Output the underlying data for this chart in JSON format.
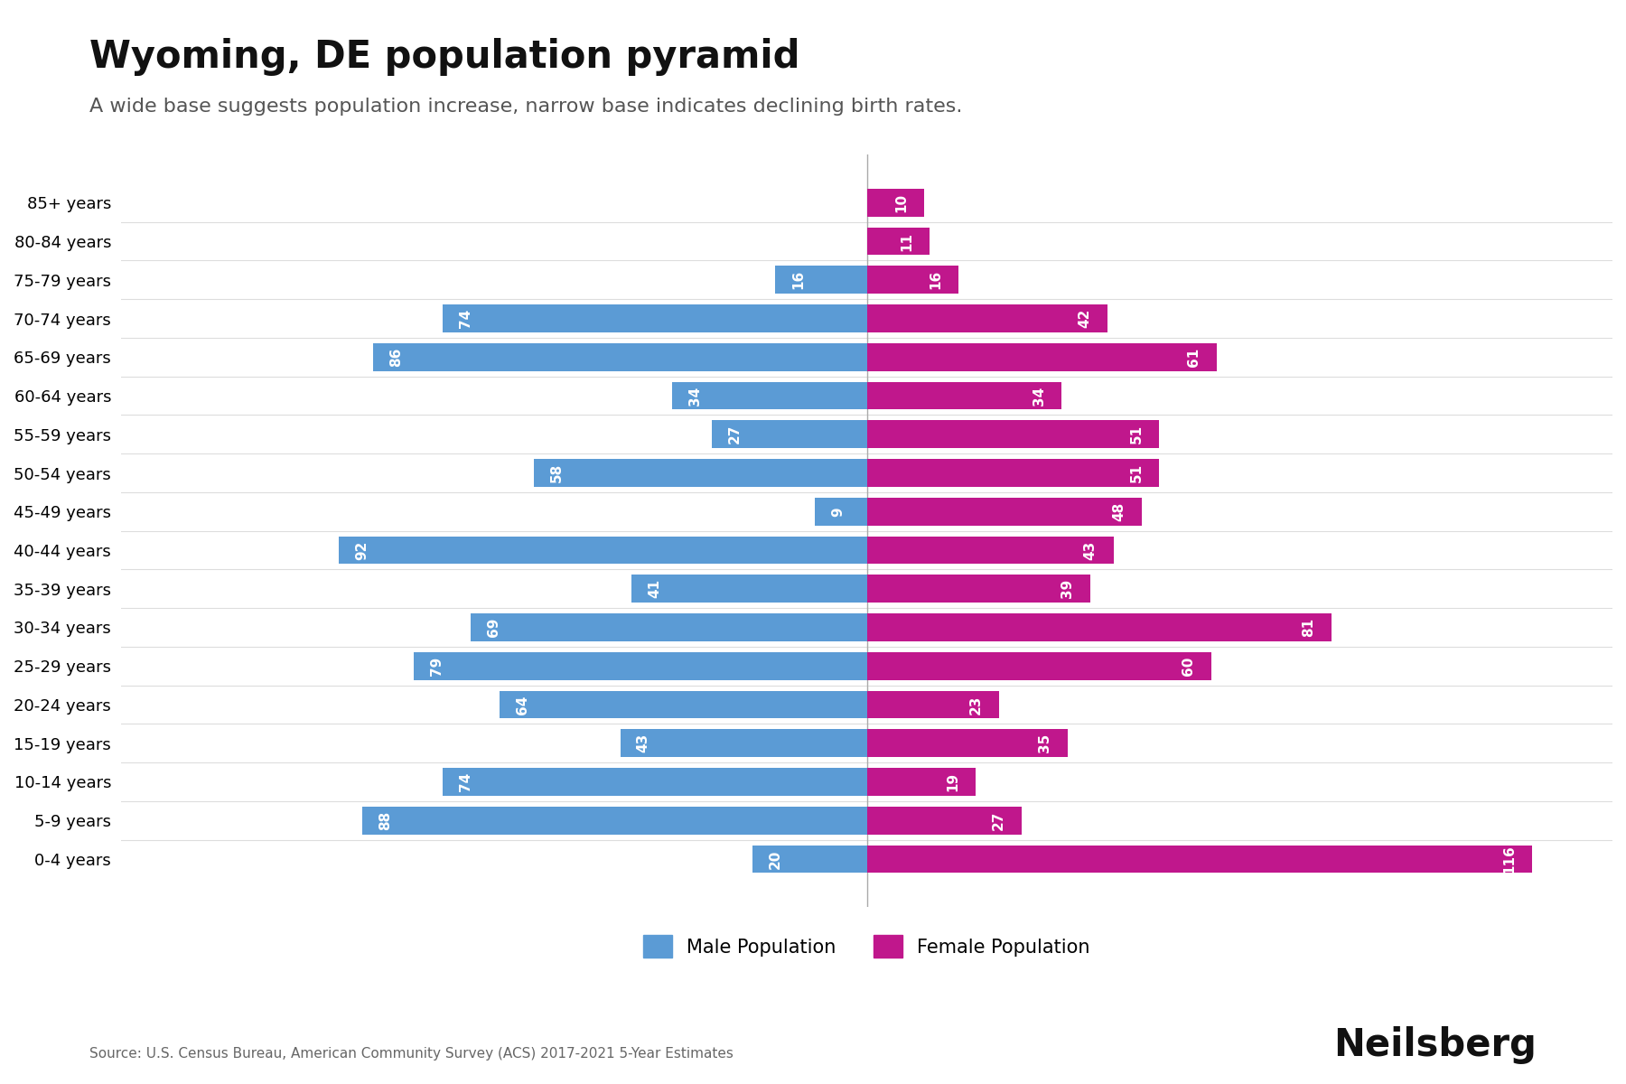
{
  "title": "Wyoming, DE population pyramid",
  "subtitle": "A wide base suggests population increase, narrow base indicates declining birth rates.",
  "source": "Source: U.S. Census Bureau, American Community Survey (ACS) 2017-2021 5-Year Estimates",
  "branding": "Neilsberg",
  "age_groups": [
    "85+ years",
    "80-84 years",
    "75-79 years",
    "70-74 years",
    "65-69 years",
    "60-64 years",
    "55-59 years",
    "50-54 years",
    "45-49 years",
    "40-44 years",
    "35-39 years",
    "30-34 years",
    "25-29 years",
    "20-24 years",
    "15-19 years",
    "10-14 years",
    "5-9 years",
    "0-4 years"
  ],
  "male_values": [
    0,
    0,
    16,
    74,
    86,
    34,
    27,
    58,
    9,
    92,
    41,
    69,
    79,
    64,
    43,
    74,
    88,
    20
  ],
  "female_values": [
    10,
    11,
    16,
    42,
    61,
    34,
    51,
    51,
    48,
    43,
    39,
    81,
    60,
    23,
    35,
    19,
    27,
    116
  ],
  "male_color": "#5B9BD5",
  "female_color": "#C0178C",
  "background_color": "#FFFFFF",
  "xlim": 130,
  "bar_height": 0.72,
  "title_fontsize": 30,
  "subtitle_fontsize": 16,
  "tick_fontsize": 13,
  "legend_fontsize": 15,
  "bar_label_fontsize": 11
}
